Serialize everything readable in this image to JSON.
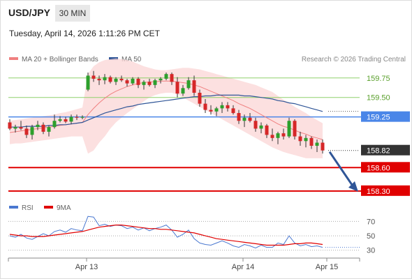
{
  "header": {
    "pair": "USD/JPY",
    "timeframe": "30 MIN",
    "timestamp": "Tuesday, April 14, 2026 1:11:26 PM CET"
  },
  "legend": {
    "ma20": {
      "label": "MA 20 + Bollinger Bands",
      "color": "#f08080"
    },
    "ma50": {
      "label": "MA 50",
      "color": "#2f5597"
    },
    "rsi": {
      "label": "RSI",
      "color": "#4a78d0"
    },
    "ma9": {
      "label": "9MA",
      "color": "#e00000"
    }
  },
  "credit": "Research © 2026 Trading Central",
  "chart_data": [
    {
      "type": "candlestick",
      "ylim": [
        158.2,
        159.9
      ],
      "x_ticks": [
        "Apr 13",
        "Apr 14",
        "Apr 15"
      ],
      "levels": [
        {
          "value": 159.75,
          "label": "159.75",
          "kind": "resistance-minor",
          "color": "#8fd06b"
        },
        {
          "value": 159.5,
          "label": "159.50",
          "kind": "resistance-minor",
          "color": "#8fd06b"
        },
        {
          "value": 159.25,
          "label": "159.25",
          "kind": "pivot",
          "color": "#4a86e8"
        },
        {
          "value": 158.82,
          "label": "158.82",
          "kind": "last-price",
          "color": "#333333"
        },
        {
          "value": 158.6,
          "label": "158.60",
          "kind": "support",
          "color": "#e00000"
        },
        {
          "value": 158.3,
          "label": "158.30",
          "kind": "support",
          "color": "#e00000"
        }
      ],
      "candles": [
        [
          159.18,
          159.22,
          159.08,
          159.1
        ],
        [
          159.1,
          159.15,
          159.05,
          159.12
        ],
        [
          159.12,
          159.2,
          159.08,
          159.1
        ],
        [
          159.1,
          159.14,
          158.98,
          159.02
        ],
        [
          159.02,
          159.15,
          158.96,
          159.12
        ],
        [
          159.12,
          159.2,
          159.08,
          159.15
        ],
        [
          159.15,
          159.18,
          159.03,
          159.06
        ],
        [
          159.06,
          159.14,
          159.0,
          159.12
        ],
        [
          159.12,
          159.28,
          159.1,
          159.2
        ],
        [
          159.2,
          159.26,
          159.18,
          159.22
        ],
        [
          159.22,
          159.25,
          159.17,
          159.19
        ],
        [
          159.19,
          159.28,
          159.16,
          159.25
        ],
        [
          159.25,
          159.28,
          159.21,
          159.24
        ],
        [
          159.24,
          159.27,
          159.22,
          159.25
        ],
        [
          159.6,
          159.82,
          159.58,
          159.78
        ],
        [
          159.78,
          159.84,
          159.7,
          159.74
        ],
        [
          159.74,
          159.78,
          159.66,
          159.72
        ],
        [
          159.72,
          159.8,
          159.67,
          159.76
        ],
        [
          159.76,
          159.78,
          159.68,
          159.7
        ],
        [
          159.7,
          159.76,
          159.66,
          159.74
        ],
        [
          159.74,
          159.78,
          159.7,
          159.72
        ],
        [
          159.72,
          159.74,
          159.64,
          159.68
        ],
        [
          159.68,
          159.76,
          159.66,
          159.74
        ],
        [
          159.74,
          159.76,
          159.62,
          159.66
        ],
        [
          159.66,
          159.72,
          159.6,
          159.7
        ],
        [
          159.7,
          159.74,
          159.64,
          159.66
        ],
        [
          159.66,
          159.74,
          159.62,
          159.72
        ],
        [
          159.72,
          159.76,
          159.68,
          159.74
        ],
        [
          159.74,
          159.82,
          159.72,
          159.8
        ],
        [
          159.8,
          159.82,
          159.66,
          159.7
        ],
        [
          159.7,
          159.76,
          159.5,
          159.55
        ],
        [
          159.55,
          159.66,
          159.52,
          159.62
        ],
        [
          159.62,
          159.76,
          159.6,
          159.72
        ],
        [
          159.72,
          159.78,
          159.52,
          159.56
        ],
        [
          159.56,
          159.6,
          159.38,
          159.42
        ],
        [
          159.42,
          159.48,
          159.3,
          159.34
        ],
        [
          159.34,
          159.4,
          159.28,
          159.32
        ],
        [
          159.32,
          159.38,
          159.26,
          159.36
        ],
        [
          159.36,
          159.44,
          159.3,
          159.4
        ],
        [
          159.4,
          159.44,
          159.32,
          159.36
        ],
        [
          159.36,
          159.4,
          159.28,
          159.3
        ],
        [
          159.3,
          159.34,
          159.16,
          159.2
        ],
        [
          159.2,
          159.28,
          159.12,
          159.24
        ],
        [
          159.24,
          159.3,
          159.18,
          159.2
        ],
        [
          159.2,
          159.24,
          159.06,
          159.1
        ],
        [
          159.1,
          159.18,
          159.04,
          159.14
        ],
        [
          159.14,
          159.16,
          158.98,
          159.02
        ],
        [
          159.02,
          159.1,
          158.94,
          158.98
        ],
        [
          158.98,
          159.06,
          158.9,
          159.04
        ],
        [
          159.04,
          159.1,
          158.96,
          159.0
        ],
        [
          159.0,
          159.24,
          158.98,
          159.2
        ],
        [
          159.2,
          159.22,
          158.96,
          159.0
        ],
        [
          159.0,
          159.06,
          158.88,
          158.94
        ],
        [
          158.94,
          159.02,
          158.86,
          158.98
        ],
        [
          158.98,
          159.0,
          158.84,
          158.88
        ],
        [
          158.88,
          158.96,
          158.8,
          158.92
        ],
        [
          158.92,
          158.96,
          158.78,
          158.82
        ]
      ],
      "ma20": [
        159.05,
        159.06,
        159.07,
        159.08,
        159.09,
        159.1,
        159.11,
        159.12,
        159.13,
        159.14,
        159.15,
        159.16,
        159.17,
        159.18,
        159.28,
        159.36,
        159.43,
        159.49,
        159.54,
        159.58,
        159.61,
        159.64,
        159.66,
        159.68,
        159.69,
        159.7,
        159.7,
        159.71,
        159.71,
        159.71,
        159.7,
        159.69,
        159.68,
        159.66,
        159.64,
        159.61,
        159.58,
        159.55,
        159.52,
        159.49,
        159.46,
        159.42,
        159.39,
        159.36,
        159.32,
        159.28,
        159.24,
        159.2,
        159.16,
        159.13,
        159.11,
        159.08,
        159.05,
        159.03,
        159.0,
        158.98,
        158.96
      ],
      "ma50": [
        159.12,
        159.12,
        159.12,
        159.13,
        159.13,
        159.13,
        159.13,
        159.14,
        159.14,
        159.15,
        159.15,
        159.16,
        159.17,
        159.18,
        159.21,
        159.24,
        159.27,
        159.3,
        159.32,
        159.34,
        159.36,
        159.38,
        159.39,
        159.41,
        159.42,
        159.43,
        159.44,
        159.45,
        159.46,
        159.47,
        159.48,
        159.49,
        159.5,
        159.51,
        159.51,
        159.52,
        159.52,
        159.53,
        159.53,
        159.53,
        159.53,
        159.53,
        159.52,
        159.52,
        159.51,
        159.5,
        159.49,
        159.48,
        159.46,
        159.45,
        159.43,
        159.42,
        159.4,
        159.38,
        159.36,
        159.34,
        159.32
      ],
      "bb_upper": [
        159.2,
        159.21,
        159.22,
        159.23,
        159.24,
        159.25,
        159.26,
        159.27,
        159.28,
        159.3,
        159.31,
        159.33,
        159.35,
        159.37,
        159.8,
        159.9,
        159.95,
        159.98,
        159.99,
        160.0,
        159.99,
        159.98,
        159.96,
        159.93,
        159.9,
        159.88,
        159.86,
        159.85,
        159.85,
        159.86,
        159.87,
        159.88,
        159.88,
        159.87,
        159.86,
        159.84,
        159.82,
        159.8,
        159.78,
        159.76,
        159.74,
        159.72,
        159.7,
        159.68,
        159.66,
        159.63,
        159.6,
        159.57,
        159.52,
        159.47,
        159.43,
        159.38,
        159.34,
        159.3,
        159.25,
        159.21,
        159.17
      ],
      "bb_lower": [
        158.9,
        158.91,
        158.91,
        158.92,
        158.93,
        158.94,
        158.95,
        158.96,
        158.97,
        158.98,
        158.99,
        159.0,
        159.0,
        159.0,
        158.78,
        158.82,
        158.92,
        159.0,
        159.1,
        159.18,
        159.24,
        159.3,
        159.35,
        159.4,
        159.45,
        159.5,
        159.53,
        159.55,
        159.56,
        159.56,
        159.54,
        159.5,
        159.46,
        159.42,
        159.38,
        159.34,
        159.3,
        159.26,
        159.22,
        159.18,
        159.14,
        159.1,
        159.06,
        159.02,
        158.98,
        158.94,
        158.9,
        158.86,
        158.83,
        158.8,
        158.78,
        158.76,
        158.74,
        158.72,
        158.72,
        158.72,
        158.72
      ],
      "projection": {
        "from": 158.82,
        "to": 158.3
      }
    },
    {
      "type": "line",
      "name": "RSI",
      "ylim": [
        22,
        82
      ],
      "y_ticks": [
        70,
        50,
        30
      ],
      "reference_lines": [
        70,
        50,
        30
      ],
      "rsi": [
        50,
        48,
        52,
        47,
        45,
        49,
        53,
        50,
        56,
        58,
        55,
        60,
        58,
        57,
        77,
        76,
        64,
        66,
        63,
        65,
        64,
        60,
        62,
        58,
        61,
        57,
        60,
        62,
        65,
        58,
        48,
        52,
        58,
        46,
        40,
        38,
        37,
        40,
        43,
        40,
        36,
        34,
        38,
        36,
        33,
        37,
        34,
        34,
        40,
        38,
        50,
        40,
        36,
        38,
        35,
        36,
        34
      ],
      "ma9": [
        52,
        51,
        50,
        50,
        49,
        49,
        49,
        50,
        51,
        52,
        53,
        54,
        55,
        56,
        58,
        60,
        62,
        63,
        64,
        65,
        65,
        64,
        63,
        62,
        61,
        60,
        60,
        59,
        59,
        58,
        57,
        56,
        55,
        54,
        52,
        50,
        48,
        46,
        45,
        44,
        43,
        42,
        41,
        40,
        39,
        38,
        37,
        37,
        37,
        37,
        38,
        39,
        39,
        40,
        40,
        39,
        38
      ]
    }
  ]
}
